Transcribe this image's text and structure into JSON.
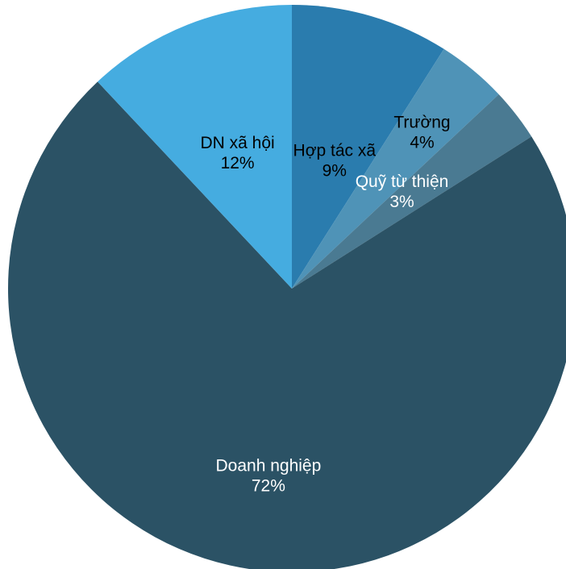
{
  "chart_data": {
    "type": "pie",
    "title": "",
    "start_angle_deg": 0,
    "direction": "clockwise",
    "legend": "none",
    "slices": [
      {
        "name": "Hợp tác xã",
        "value": 9,
        "label": "9%",
        "color": "#2A7CAE",
        "label_color": "#000000"
      },
      {
        "name": "Trường",
        "value": 4,
        "label": "4%",
        "color": "#4F93B7",
        "label_color": "#000000"
      },
      {
        "name": "Quỹ từ thiện",
        "value": 3,
        "label": "3%",
        "color": "#4A7A92",
        "label_color": "#ffffff"
      },
      {
        "name": "Doanh nghiệp",
        "value": 72,
        "label": "72%",
        "color": "#2B5265",
        "label_color": "#ffffff"
      },
      {
        "name": "DN xã hội",
        "value": 12,
        "label": "12%",
        "color": "#45ACE0",
        "label_color": "#000000"
      }
    ]
  }
}
